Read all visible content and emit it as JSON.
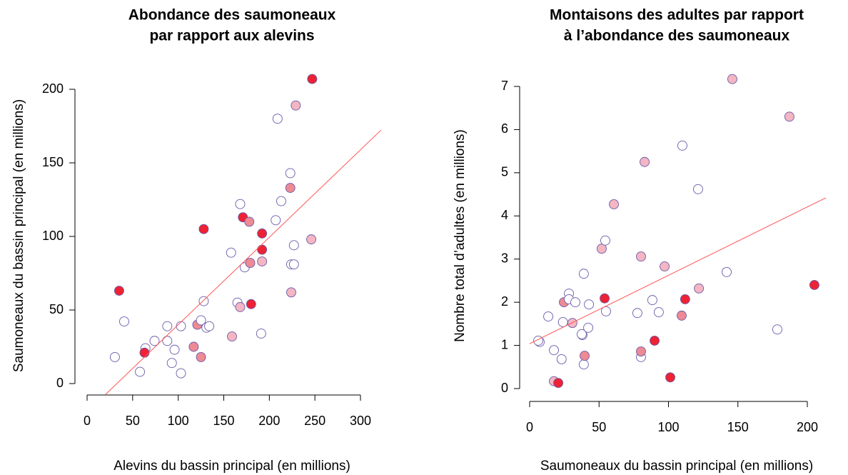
{
  "chart_data": [
    {
      "type": "scatter",
      "title": [
        "Abondance des saumoneaux",
        "par rapport aux alevins"
      ],
      "x_label": "Alevins du bassin principal (en millions)",
      "y_label": "Saumoneaux du bassin principal (en millions)",
      "xlim": [
        0,
        300
      ],
      "ylim": [
        0,
        200
      ],
      "xticks": [
        0,
        50,
        100,
        150,
        200,
        250,
        300
      ],
      "yticks": [
        0,
        50,
        100,
        150,
        200
      ],
      "edgecolor": "#6a5aaa",
      "x": [
        30.5,
        40.7,
        35.2,
        58,
        64,
        63,
        74,
        88,
        88,
        93,
        96,
        103,
        103,
        117,
        121,
        125,
        125,
        128,
        128,
        131,
        134,
        158,
        159,
        165,
        168,
        168,
        171,
        173,
        178,
        179,
        180,
        191,
        192,
        192,
        192,
        207,
        209,
        213,
        223,
        223,
        224,
        224,
        227,
        227,
        229,
        246,
        247
      ],
      "y": [
        18,
        42.2,
        63.1,
        8,
        24,
        21,
        29,
        39,
        29,
        14,
        23,
        39,
        7,
        25,
        40,
        43,
        18,
        56,
        105,
        38,
        39,
        89,
        32,
        55,
        52,
        122,
        113,
        79,
        110,
        82,
        54,
        34,
        83,
        91,
        102,
        111,
        180,
        124,
        143,
        133,
        62,
        81,
        81,
        94,
        189,
        98,
        207
      ],
      "colors": [
        "#ffffff",
        "#ffffff",
        "#ee2233",
        "#ffffff",
        "#ffffff",
        "#ee2233",
        "#ffffff",
        "#ffffff",
        "#ffffff",
        "#ffffff",
        "#ffffff",
        "#ffffff",
        "#ffffff",
        "#ee8a94",
        "#ee8a94",
        "#ffffff",
        "#ee8a94",
        "#ffffff",
        "#ee2233",
        "#ffffff",
        "#ffffff",
        "#ffffff",
        "#f4b6c2",
        "#ffffff",
        "#f4b6c2",
        "#ffffff",
        "#ee2233",
        "#ffffff",
        "#ee8a94",
        "#ee8a94",
        "#ee2233",
        "#ffffff",
        "#f4b6c2",
        "#ee2233",
        "#ee2233",
        "#ffffff",
        "#ffffff",
        "#ffffff",
        "#ffffff",
        "#ee8a94",
        "#f4b6c2",
        "#ffffff",
        "#ffffff",
        "#ffffff",
        "#f4b6c2",
        "#f4b6c2",
        "#ee2233"
      ],
      "trendline": {
        "x": [
          20.4,
          322.6
        ],
        "y": [
          -7.3,
          172.3
        ],
        "color": "#ff5555"
      }
    },
    {
      "type": "scatter",
      "title": [
        "Montaisons des adultes par rapport",
        "à l’abondance des saumoneaux"
      ],
      "x_label": "Saumoneaux du bassin principal (en millions)",
      "y_label": "Nombre total d’adultes (en millions)",
      "xlim": [
        0,
        200
      ],
      "ylim": [
        0,
        7
      ],
      "xticks": [
        0,
        50,
        100,
        150,
        200
      ],
      "yticks": [
        0,
        1,
        2,
        3,
        4,
        5,
        6,
        7
      ],
      "edgecolor": "#6a5aaa",
      "x": [
        7.2,
        6.2,
        13.4,
        17.5,
        17.5,
        20.6,
        23,
        24,
        24.7,
        28.3,
        28.3,
        30.8,
        32.9,
        38,
        37.5,
        39,
        39,
        39.6,
        42.2,
        42.7,
        51.9,
        54,
        54.5,
        55,
        60.7,
        77.6,
        80.2,
        80.2,
        80.2,
        82.8,
        88.4,
        90,
        93,
        97.2,
        101.3,
        109.5,
        110,
        112,
        121.3,
        121.9,
        141.9,
        146,
        178.4,
        187.1,
        205.1
      ],
      "y": [
        1.08,
        1.11,
        1.67,
        0.89,
        0.17,
        0.13,
        0.68,
        1.54,
        2.0,
        2.2,
        2.07,
        1.52,
        2.0,
        1.24,
        1.26,
        2.66,
        0.56,
        0.76,
        1.41,
        1.95,
        3.24,
        2.09,
        3.43,
        1.79,
        4.27,
        1.75,
        3.06,
        0.73,
        0.86,
        5.25,
        2.05,
        1.11,
        1.77,
        2.83,
        0.26,
        1.69,
        5.63,
        2.07,
        4.62,
        2.32,
        2.7,
        7.17,
        1.37,
        6.3,
        2.4
      ],
      "colors": [
        "#ffffff",
        "#ffffff",
        "#ffffff",
        "#ffffff",
        "#f4b6c2",
        "#ee2233",
        "#ffffff",
        "#ffffff",
        "#ee8a94",
        "#ffffff",
        "#ffffff",
        "#f4b6c2",
        "#ffffff",
        "#ffffff",
        "#ffffff",
        "#ffffff",
        "#ffffff",
        "#ee8a94",
        "#ffffff",
        "#ffffff",
        "#f4b6c2",
        "#ee2233",
        "#ffffff",
        "#ffffff",
        "#f4b6c2",
        "#ffffff",
        "#f4b6c2",
        "#ffffff",
        "#ee8a94",
        "#f4b6c2",
        "#ffffff",
        "#ee2233",
        "#ffffff",
        "#f4b6c2",
        "#ee2233",
        "#ee8a94",
        "#ffffff",
        "#ee2233",
        "#ffffff",
        "#f4b6c2",
        "#ffffff",
        "#f4b6c2",
        "#ffffff",
        "#f4b6c2",
        "#ee2233"
      ],
      "trendline": {
        "x": [
          0,
          213.4
        ],
        "y": [
          1.04,
          4.42
        ],
        "color": "#ff5555"
      }
    }
  ]
}
